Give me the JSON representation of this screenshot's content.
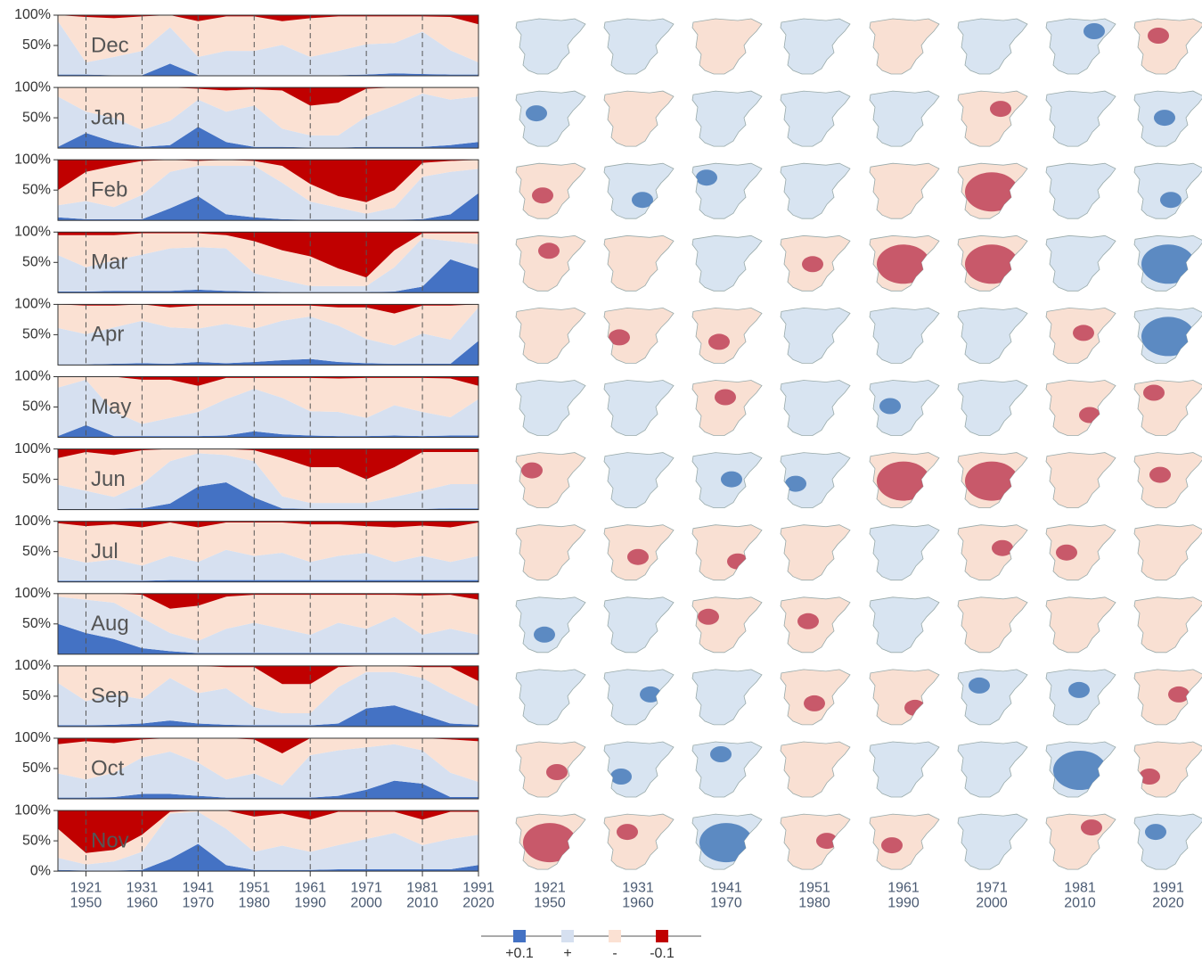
{
  "chart_data": {
    "type": "stacked_area",
    "x": [
      1916,
      1921,
      1926,
      1931,
      1936,
      1941,
      1946,
      1951,
      1956,
      1961,
      1966,
      1971,
      1976,
      1981,
      1986,
      1991
    ],
    "xlim": [
      1916,
      1991
    ],
    "xticks": [
      {
        "value": 1921,
        "label": [
          "1921",
          "1950"
        ]
      },
      {
        "value": 1931,
        "label": [
          "1931",
          "1960"
        ]
      },
      {
        "value": 1941,
        "label": [
          "1941",
          "1970"
        ]
      },
      {
        "value": 1951,
        "label": [
          "1951",
          "1980"
        ]
      },
      {
        "value": 1961,
        "label": [
          "1961",
          "1990"
        ]
      },
      {
        "value": 1971,
        "label": [
          "1971",
          "2000"
        ]
      },
      {
        "value": 1981,
        "label": [
          "1981",
          "2010"
        ]
      },
      {
        "value": 1991,
        "label": [
          "1991",
          "2020"
        ]
      }
    ],
    "ylim": [
      0,
      100
    ],
    "yticks": [
      {
        "value": 0,
        "label": "0%"
      },
      {
        "value": 50,
        "label": "50%"
      },
      {
        "value": 100,
        "label": "100%"
      }
    ],
    "legend": [
      {
        "name": "+0.1",
        "color": "#4472c4"
      },
      {
        "name": "+",
        "color": "#d6e0f0"
      },
      {
        "name": "-",
        "color": "#fbe1d3"
      },
      {
        "name": "-0.1",
        "color": "#c00000"
      }
    ],
    "panels": [
      {
        "title": "Dec",
        "series": [
          [
            2,
            2,
            1,
            1,
            20,
            1,
            1,
            1,
            1,
            1,
            1,
            2,
            4,
            3,
            2,
            2
          ],
          [
            88,
            20,
            30,
            40,
            60,
            30,
            40,
            40,
            50,
            30,
            40,
            50,
            50,
            70,
            40,
            20
          ],
          [
            10,
            75,
            64,
            57,
            20,
            59,
            57,
            57,
            39,
            64,
            57,
            46,
            44,
            25,
            55,
            63
          ],
          [
            0,
            3,
            5,
            2,
            0,
            10,
            2,
            2,
            10,
            5,
            2,
            2,
            2,
            2,
            3,
            15
          ]
        ]
      },
      {
        "title": "Jan",
        "series": [
          [
            2,
            25,
            10,
            2,
            5,
            35,
            10,
            2,
            2,
            1,
            1,
            2,
            2,
            2,
            5,
            10
          ],
          [
            83,
            35,
            40,
            28,
            40,
            45,
            50,
            68,
            30,
            20,
            20,
            50,
            68,
            88,
            75,
            75
          ],
          [
            15,
            40,
            50,
            70,
            55,
            18,
            35,
            27,
            63,
            49,
            54,
            46,
            30,
            10,
            20,
            15
          ],
          [
            0,
            0,
            0,
            0,
            0,
            2,
            5,
            3,
            5,
            30,
            25,
            2,
            0,
            0,
            0,
            0
          ]
        ]
      },
      {
        "title": "Feb",
        "series": [
          [
            5,
            2,
            2,
            2,
            20,
            40,
            10,
            5,
            2,
            1,
            1,
            1,
            1,
            2,
            10,
            45
          ],
          [
            20,
            30,
            20,
            40,
            60,
            50,
            80,
            85,
            60,
            30,
            20,
            10,
            20,
            70,
            70,
            40
          ],
          [
            25,
            48,
            68,
            56,
            20,
            8,
            10,
            8,
            28,
            29,
            19,
            19,
            29,
            23,
            18,
            15
          ],
          [
            50,
            20,
            10,
            2,
            0,
            2,
            0,
            2,
            10,
            40,
            60,
            70,
            50,
            5,
            2,
            0
          ]
        ]
      },
      {
        "title": "Mar",
        "series": [
          [
            2,
            2,
            3,
            3,
            3,
            5,
            3,
            2,
            1,
            1,
            1,
            1,
            2,
            10,
            55,
            40
          ],
          [
            60,
            40,
            50,
            60,
            70,
            70,
            70,
            30,
            20,
            10,
            10,
            10,
            40,
            80,
            30,
            40
          ],
          [
            33,
            53,
            42,
            35,
            25,
            23,
            22,
            53,
            49,
            49,
            29,
            14,
            28,
            8,
            13,
            18
          ],
          [
            5,
            5,
            5,
            2,
            2,
            2,
            5,
            15,
            30,
            40,
            60,
            75,
            30,
            2,
            2,
            2
          ]
        ]
      },
      {
        "title": "Apr",
        "series": [
          [
            1,
            1,
            2,
            3,
            2,
            5,
            3,
            5,
            8,
            10,
            5,
            3,
            2,
            2,
            2,
            40
          ],
          [
            60,
            50,
            60,
            70,
            60,
            55,
            65,
            55,
            65,
            70,
            60,
            40,
            30,
            50,
            40,
            55
          ],
          [
            39,
            47,
            36,
            27,
            33,
            38,
            30,
            38,
            25,
            18,
            30,
            52,
            53,
            46,
            56,
            5
          ],
          [
            0,
            2,
            2,
            0,
            5,
            2,
            2,
            2,
            2,
            2,
            5,
            5,
            15,
            2,
            2,
            0
          ]
        ]
      },
      {
        "title": "May",
        "series": [
          [
            2,
            20,
            2,
            2,
            2,
            2,
            3,
            10,
            5,
            3,
            2,
            2,
            3,
            2,
            3,
            3
          ],
          [
            80,
            75,
            40,
            20,
            30,
            40,
            60,
            70,
            60,
            40,
            40,
            30,
            50,
            40,
            30,
            60
          ],
          [
            18,
            5,
            58,
            73,
            63,
            43,
            35,
            18,
            33,
            55,
            55,
            66,
            45,
            56,
            64,
            22
          ],
          [
            0,
            0,
            0,
            5,
            5,
            15,
            2,
            2,
            2,
            2,
            3,
            2,
            2,
            2,
            3,
            15
          ]
        ]
      },
      {
        "title": "Jun",
        "series": [
          [
            1,
            1,
            1,
            2,
            10,
            38,
            45,
            20,
            2,
            1,
            1,
            1,
            1,
            1,
            2,
            2
          ],
          [
            40,
            30,
            20,
            40,
            70,
            55,
            45,
            60,
            20,
            10,
            10,
            10,
            20,
            30,
            40,
            40
          ],
          [
            44,
            64,
            69,
            56,
            20,
            7,
            10,
            18,
            63,
            59,
            59,
            39,
            49,
            64,
            53,
            53
          ],
          [
            15,
            5,
            10,
            2,
            0,
            0,
            0,
            2,
            15,
            30,
            30,
            50,
            30,
            5,
            5,
            5
          ]
        ]
      },
      {
        "title": "Jul",
        "series": [
          [
            2,
            2,
            2,
            2,
            3,
            3,
            3,
            3,
            3,
            3,
            3,
            3,
            3,
            3,
            3,
            3
          ],
          [
            40,
            30,
            35,
            25,
            40,
            30,
            50,
            40,
            45,
            30,
            40,
            45,
            30,
            40,
            30,
            40
          ],
          [
            55,
            60,
            58,
            63,
            55,
            57,
            45,
            55,
            50,
            62,
            52,
            44,
            57,
            50,
            57,
            55
          ],
          [
            3,
            8,
            5,
            10,
            2,
            10,
            2,
            2,
            2,
            5,
            5,
            8,
            10,
            7,
            10,
            2
          ]
        ]
      },
      {
        "title": "Aug",
        "series": [
          [
            50,
            35,
            25,
            10,
            5,
            2,
            2,
            2,
            2,
            2,
            2,
            2,
            2,
            2,
            2,
            2
          ],
          [
            45,
            55,
            60,
            50,
            30,
            20,
            40,
            50,
            40,
            30,
            50,
            40,
            60,
            30,
            40,
            30
          ],
          [
            5,
            10,
            15,
            38,
            40,
            58,
            53,
            46,
            56,
            66,
            46,
            56,
            36,
            65,
            56,
            58
          ],
          [
            0,
            0,
            0,
            2,
            25,
            20,
            5,
            2,
            2,
            2,
            2,
            2,
            2,
            3,
            2,
            10
          ]
        ]
      },
      {
        "title": "Sep",
        "series": [
          [
            2,
            2,
            3,
            5,
            10,
            5,
            3,
            2,
            2,
            2,
            5,
            30,
            35,
            20,
            5,
            3
          ],
          [
            70,
            40,
            50,
            40,
            70,
            50,
            60,
            30,
            20,
            20,
            60,
            60,
            55,
            60,
            50,
            30
          ],
          [
            28,
            58,
            47,
            55,
            20,
            45,
            35,
            66,
            48,
            48,
            33,
            10,
            10,
            18,
            43,
            42
          ],
          [
            0,
            0,
            0,
            0,
            0,
            0,
            2,
            2,
            30,
            30,
            2,
            0,
            0,
            2,
            2,
            25
          ]
        ]
      },
      {
        "title": "Oct",
        "series": [
          [
            2,
            2,
            3,
            8,
            8,
            5,
            2,
            2,
            2,
            2,
            5,
            15,
            30,
            25,
            3,
            3
          ],
          [
            40,
            30,
            40,
            60,
            70,
            55,
            30,
            40,
            20,
            70,
            75,
            70,
            60,
            55,
            40,
            25
          ],
          [
            48,
            63,
            49,
            30,
            22,
            40,
            68,
            56,
            53,
            28,
            20,
            15,
            10,
            20,
            55,
            67
          ],
          [
            10,
            5,
            8,
            2,
            0,
            0,
            0,
            2,
            25,
            0,
            0,
            0,
            0,
            0,
            2,
            5
          ]
        ]
      },
      {
        "title": "Nov",
        "series": [
          [
            2,
            1,
            1,
            2,
            20,
            45,
            10,
            2,
            2,
            2,
            3,
            3,
            3,
            3,
            3,
            10
          ],
          [
            20,
            10,
            15,
            30,
            75,
            53,
            60,
            30,
            40,
            30,
            40,
            50,
            60,
            40,
            50,
            50
          ],
          [
            48,
            19,
            19,
            28,
            3,
            2,
            30,
            58,
            53,
            53,
            55,
            45,
            35,
            42,
            45,
            38
          ],
          [
            30,
            70,
            65,
            40,
            2,
            0,
            0,
            10,
            5,
            15,
            2,
            2,
            2,
            15,
            2,
            2
          ]
        ]
      }
    ]
  }
}
